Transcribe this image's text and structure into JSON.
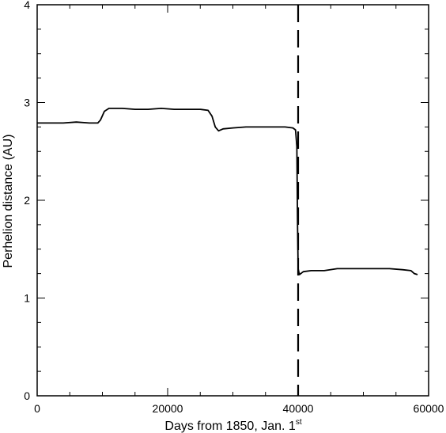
{
  "chart_data": {
    "type": "line",
    "xlabel_main": "Days from 1850, Jan. 1",
    "xlabel_sup": "st",
    "ylabel": "Perhelion distance (AU)",
    "xlim": [
      0,
      60000
    ],
    "ylim": [
      0,
      4
    ],
    "x_ticks": [
      0,
      20000,
      40000,
      60000
    ],
    "x_tick_labels": [
      "0",
      "20000",
      "40000",
      "60000"
    ],
    "y_ticks": [
      0,
      1,
      2,
      3,
      4
    ],
    "y_tick_labels": [
      "0",
      "1",
      "2",
      "3",
      "4"
    ],
    "x_minor_step": 5000,
    "y_minor_step": 0.25,
    "grid": false,
    "legend": "none",
    "vertical_marker": {
      "x": 40000,
      "style": "dashed"
    },
    "series": [
      {
        "points": [
          [
            0,
            2.79
          ],
          [
            2000,
            2.79
          ],
          [
            4000,
            2.79
          ],
          [
            6000,
            2.8
          ],
          [
            8000,
            2.79
          ],
          [
            9300,
            2.79
          ],
          [
            9700,
            2.82
          ],
          [
            10300,
            2.91
          ],
          [
            11000,
            2.94
          ],
          [
            13000,
            2.94
          ],
          [
            15000,
            2.93
          ],
          [
            17000,
            2.93
          ],
          [
            19000,
            2.94
          ],
          [
            21000,
            2.93
          ],
          [
            23000,
            2.93
          ],
          [
            25000,
            2.93
          ],
          [
            26200,
            2.92
          ],
          [
            26800,
            2.86
          ],
          [
            27300,
            2.75
          ],
          [
            27800,
            2.71
          ],
          [
            28500,
            2.73
          ],
          [
            30000,
            2.74
          ],
          [
            32000,
            2.75
          ],
          [
            34000,
            2.75
          ],
          [
            36000,
            2.75
          ],
          [
            38000,
            2.75
          ],
          [
            39200,
            2.74
          ],
          [
            39600,
            2.72
          ],
          [
            39800,
            2.55
          ],
          [
            39900,
            1.8
          ],
          [
            40000,
            1.3
          ],
          [
            40200,
            1.24
          ],
          [
            40800,
            1.27
          ],
          [
            42000,
            1.28
          ],
          [
            44000,
            1.28
          ],
          [
            46000,
            1.3
          ],
          [
            48000,
            1.3
          ],
          [
            50000,
            1.3
          ],
          [
            52000,
            1.3
          ],
          [
            54000,
            1.3
          ],
          [
            56000,
            1.29
          ],
          [
            57300,
            1.28
          ],
          [
            57800,
            1.25
          ],
          [
            58300,
            1.24
          ]
        ]
      }
    ]
  }
}
